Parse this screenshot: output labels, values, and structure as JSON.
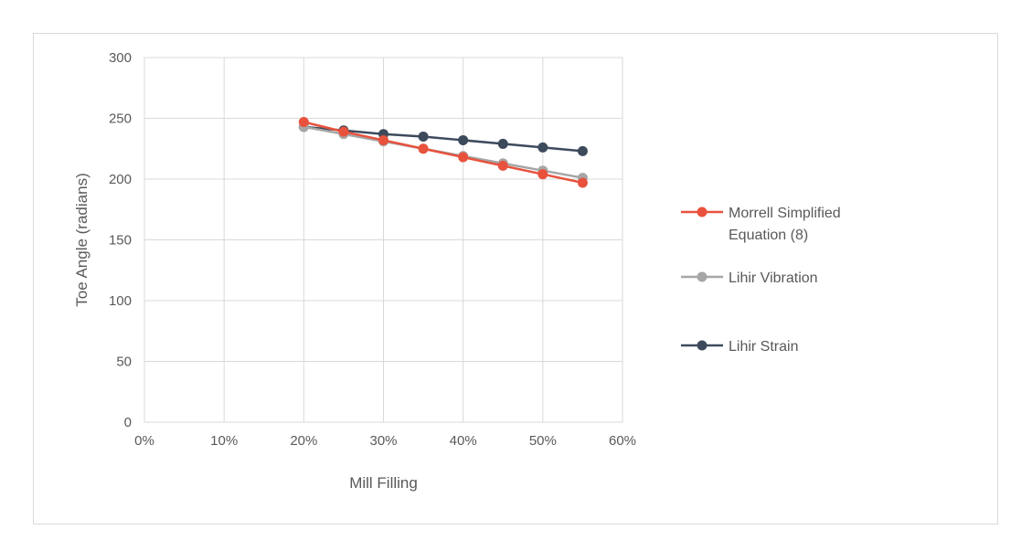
{
  "chart_data": {
    "type": "line",
    "title": "",
    "xlabel": "Mill Filling",
    "ylabel": "Toe Angle (radians)",
    "x_tick_labels": [
      "0%",
      "10%",
      "20%",
      "30%",
      "40%",
      "50%",
      "60%"
    ],
    "y_tick_labels": [
      "0",
      "50",
      "100",
      "150",
      "200",
      "250",
      "300"
    ],
    "xlim": [
      0,
      0.6
    ],
    "ylim": [
      0,
      300
    ],
    "grid": true,
    "legend_position": "right",
    "x": [
      0.2,
      0.25,
      0.3,
      0.35,
      0.4,
      0.45,
      0.5,
      0.55
    ],
    "series": [
      {
        "name": "Morrell Simplified Equation (8)",
        "name_lines": [
          "Morrell Simplified",
          "Equation (8)"
        ],
        "color": "#e8523d",
        "values": [
          247,
          239,
          232,
          225,
          218,
          211,
          204,
          197
        ]
      },
      {
        "name": "Lihir Vibration",
        "name_lines": [
          "Lihir Vibration"
        ],
        "color": "#a6a6a6",
        "values": [
          243,
          237,
          231,
          225,
          219,
          213,
          207,
          201
        ]
      },
      {
        "name": "Lihir Strain",
        "name_lines": [
          "Lihir Strain"
        ],
        "color": "#3d4a5c",
        "values": [
          243,
          240,
          237,
          235,
          232,
          229,
          226,
          223
        ]
      }
    ]
  }
}
